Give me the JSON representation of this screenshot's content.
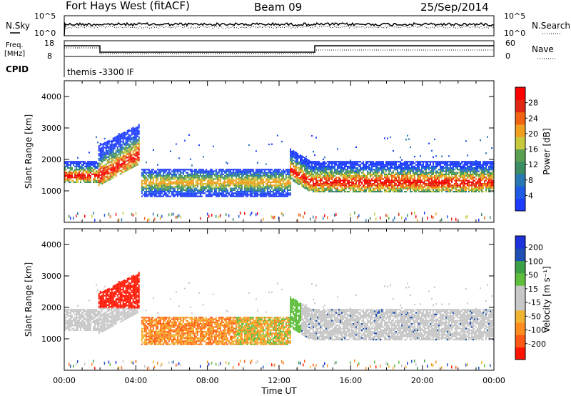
{
  "header": {
    "station": "Fort Hays West (fitACF)",
    "beam": "Beam 09",
    "date": "25/Sep/2014"
  },
  "top_panels": {
    "nsky_label": "N.Sky",
    "nsky_ticks": [
      "10^5",
      "10^0"
    ],
    "nsearch_label": "N.Search",
    "nsearch_ticks": [
      "10^5",
      "10^0"
    ],
    "freq_label_1": "Freq.",
    "freq_label_2": "[MHz]",
    "freq_ticks": [
      "18",
      "8"
    ],
    "nave_label": "Nave",
    "nave_ticks": [
      "60",
      "0"
    ],
    "cpid_label": "CPID",
    "cpid_text": "themis -3300 IF"
  },
  "colors": {
    "power_scale": [
      "#1e3cff",
      "#1e5ae6",
      "#2878b4",
      "#3c8c64",
      "#5aa050",
      "#c8c83c",
      "#f0a020",
      "#f06414",
      "#e02814",
      "#ff0000"
    ],
    "velocity_scale": [
      "#ff1400",
      "#ff5a14",
      "#ff8c1e",
      "#f0b432",
      "#c8c8c8",
      "#c8c8c8",
      "#5fbe3c",
      "#3ca046",
      "#1e50b4",
      "#1e32dc"
    ]
  },
  "chart_data": [
    {
      "type": "heatmap",
      "name": "power",
      "ylabel": "Slant Range [km]",
      "xlabel": "Time UT",
      "x_ticks": [
        "00:00",
        "04:00",
        "08:00",
        "12:00",
        "16:00",
        "20:00",
        "00:00"
      ],
      "y_ticks": [
        "1000",
        "2000",
        "3000",
        "4000"
      ],
      "xlim_hours": [
        0,
        24
      ],
      "ylim_km": [
        0,
        4500
      ],
      "colorbar_label": "Power [dB]",
      "colorbar_ticks": [
        "4",
        "8",
        "12",
        "16",
        "20",
        "24",
        "28"
      ],
      "colorbar_range": [
        0,
        32
      ],
      "echo_bands": [
        {
          "t0": 0.0,
          "t1": 1.9,
          "r0": 1300,
          "r1": 2000,
          "peak": 1500
        },
        {
          "t0": 1.9,
          "t1": 4.2,
          "r0": 1200,
          "r1": 2500,
          "peak": 1500
        },
        {
          "t0": 4.3,
          "t1": 12.6,
          "r0": 850,
          "r1": 1750,
          "peak": 1300
        },
        {
          "t0": 12.6,
          "t1": 24.0,
          "r0": 1000,
          "r1": 2000,
          "peak": 1300
        }
      ]
    },
    {
      "type": "heatmap",
      "name": "velocity",
      "ylabel": "Slant Range [km]",
      "xlabel": "Time UT",
      "x_ticks": [
        "00:00",
        "04:00",
        "08:00",
        "12:00",
        "16:00",
        "20:00",
        "00:00"
      ],
      "y_ticks": [
        "1000",
        "2000",
        "3000",
        "4000"
      ],
      "xlim_hours": [
        0,
        24
      ],
      "ylim_km": [
        0,
        4500
      ],
      "colorbar_label": "Velocity [m s⁻¹]",
      "colorbar_ticks": [
        "200",
        "100",
        "50",
        "15",
        "-15",
        "-50",
        "-100",
        "-200"
      ],
      "colorbar_range": [
        -250,
        250
      ]
    }
  ],
  "footer": {
    "xlabel": "Time UT"
  }
}
